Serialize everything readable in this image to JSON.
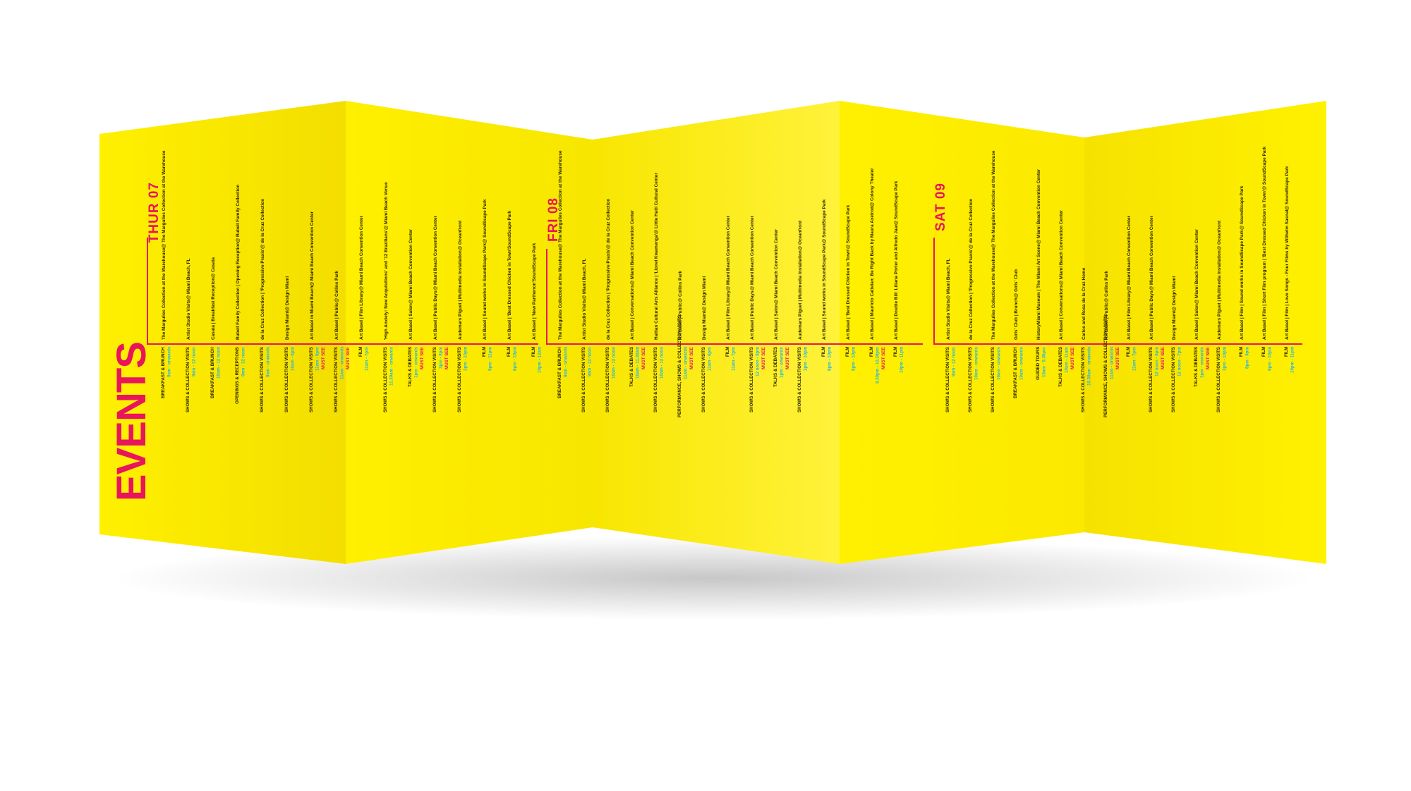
{
  "title": "EVENTS",
  "colors": {
    "paper": "#ffef00",
    "accent": "#e8145c",
    "time": "#27b8d8",
    "text": "#2b2200"
  },
  "days": [
    {
      "label": "THUR 07"
    },
    {
      "label": "FRI 08"
    },
    {
      "label": "SAT 09"
    }
  ],
  "thur_venues": [
    [
      "The Margulies Collection at the Warehouse",
      "@ The Margulies Collection at the Warehouse"
    ],
    [
      "Artist Studio Visits",
      "@ Miami Beach, FL"
    ],
    [
      "Casata | Breakfast Reception",
      "@ Casata"
    ],
    [
      "Rubell Family Collection | Opening Reception",
      "@ Rubell Family Collection"
    ],
    [
      "de la Cruz Collection | 'Progressive Praxis'",
      "@ de la Cruz Collection"
    ],
    [
      "Design Miami",
      "@ Design Miami"
    ],
    [
      "Art Basel in Miami Beach",
      "@ Miami Beach Convention Center"
    ],
    [
      "Art Basel | Public",
      "@ Collins Park"
    ],
    [
      "Art Basel | Film Library",
      "@ Miami Beach Convention Center"
    ],
    [
      "'High Anxiety: New Acquisitions' and '12 Brazilians'",
      "@ Miami Beach Venue"
    ],
    [
      "Art Basel | Salon",
      "@ Miami Beach Convention Center"
    ],
    [
      "Art Basel | Public Days",
      "@ Miami Beach Convention Center"
    ],
    [
      "Audemars Piguet | Multimedia Installation",
      "@ Oceanfront"
    ],
    [
      "Art Basel | Sound works in SoundScape Park",
      "@ SoundScape Park"
    ],
    [
      "Art Basel | 'Best Dressed Chicken in Town'",
      "SoundScape Park"
    ],
    [
      "Art Basel | 'New Parthenon'",
      "SoundScape Park"
    ]
  ],
  "thur_cats": [
    [
      "BREAKFAST & BRUNCH",
      "9am - onwards",
      ""
    ],
    [
      "SHOWS & COLLECTION VISITS",
      "9am - 12 noon",
      ""
    ],
    [
      "BREAKFAST & BRUNCH",
      "10am - 12 noon",
      ""
    ],
    [
      "OPENINGS & RECEPTIONS",
      "9am - 12 noon",
      ""
    ],
    [
      "SHOWS & COLLECTION VISITS",
      "9am - onwards",
      ""
    ],
    [
      "SHOWS & COLLECTION VISITS",
      "10am - 6pm",
      ""
    ],
    [
      "SHOWS & COLLECTION VISITS",
      "11am - 8pm",
      "MUST SEE"
    ],
    [
      "SHOWS & COLLECTION VISITS",
      "11am - onwards",
      "MUST SEE"
    ],
    [
      "FILM",
      "11am - 7pm",
      ""
    ],
    [
      "SHOWS & COLLECTION VISITS",
      "11.30am - onwards",
      ""
    ],
    [
      "TALKS & DEBATES",
      "1pm - onwards",
      "MUST SEE"
    ],
    [
      "SHOWS & COLLECTION VISITS",
      "3pm - 8pm",
      "MUST SEE"
    ],
    [
      "SHOWS & COLLECTION VISITS",
      "3pm - 10pm",
      ""
    ],
    [
      "FILM",
      "9pm - 11pm",
      ""
    ],
    [
      "FILM",
      "8pm - 10pm",
      ""
    ],
    [
      "FILM",
      "10pm - 12am",
      ""
    ]
  ],
  "fri_venues": [
    [
      "The Margulies Collection at the Warehouse",
      "@ The Margulies Collection at the Warehouse"
    ],
    [
      "Artist Studio Visits",
      "@ Miami Beach, FL"
    ],
    [
      "de la Cruz Collection | 'Progressive Praxis'",
      "@ de la Cruz Collection"
    ],
    [
      "Art Basel | Conversations",
      "@ Miami Beach Convention Center"
    ],
    [
      "Haitian Cultural Arts Alliance | 'Lionel Kwamenga'",
      "@ Little Haiti Cultural Center"
    ],
    [
      "Art Basel | Public",
      "@ Collins Park"
    ],
    [
      "Design Miami",
      "@ Design Miami"
    ],
    [
      "Art Basel | Film Library",
      "@ Miami Beach Convention Center"
    ],
    [
      "Art Basel | Public Days",
      "@ Miami Beach Convention Center"
    ],
    [
      "Art Basel | Salon",
      "@ Miami Beach Convention Center"
    ],
    [
      "Audemars Piguet | Multimedia Installation",
      "@ Oceanfront"
    ],
    [
      "Art Basel | Sound works in SoundScape Park",
      "@ SoundScape Park"
    ],
    [
      "Art Basel | 'Best Dressed Chicken in Town'",
      "@ SoundScape Park"
    ],
    [
      "Art Basel | Mauricio Cattelan: Be Right Back by Maura Axelrod",
      "@ Colony Theater"
    ],
    [
      "Art Basel | Double Bill: Liliana Porter and Alfredo Jaar",
      "@ SoundScape Park"
    ]
  ],
  "fri_cats": [
    [
      "BREAKFAST & BRUNCH",
      "9am - onwards",
      ""
    ],
    [
      "SHOWS & COLLECTION VISITS",
      "9am - 12 noon",
      ""
    ],
    [
      "SHOWS & COLLECTION VISITS",
      "10am - 12 noon",
      ""
    ],
    [
      "TALKS & DEBATES",
      "10am - 11.30am",
      "MUST SEE"
    ],
    [
      "SHOWS & COLLECTION VISITS",
      "10am - 12 noon",
      ""
    ],
    [
      "PERFORMANCE, SHOWS & COLLECTION VISITS",
      "11am - onwards",
      "MUST SEE"
    ],
    [
      "SHOWS & COLLECTION VISITS",
      "11am - 6pm",
      ""
    ],
    [
      "FILM",
      "11am - 7pm",
      ""
    ],
    [
      "SHOWS & COLLECTION VISITS",
      "12 noon - 8pm",
      "MUST SEE"
    ],
    [
      "TALKS & DEBATES",
      "1pm - onwards",
      "MUST SEE"
    ],
    [
      "SHOWS & COLLECTION VISITS",
      "3pm - 10pm",
      ""
    ],
    [
      "FILM",
      "8pm - 10pm",
      ""
    ],
    [
      "FILM",
      "8pm - 10pm",
      ""
    ],
    [
      "FILM",
      "8.30pm - 10.30pm",
      "MUST SEE"
    ],
    [
      "FILM",
      "10pm - 11pm",
      ""
    ]
  ],
  "sat_venues": [
    [
      "Artist Studio Visits",
      "@ Miami Beach, FL"
    ],
    [
      "de la Cruz Collection | 'Progressive Praxis'",
      "@ de la Cruz Collection"
    ],
    [
      "The Margulies Collection at the Warehouse",
      "@ The Margulies Collection at the Warehouse"
    ],
    [
      "Girls' Club | Brunch",
      "@ Girls' Club"
    ],
    [
      "HistoryMiami Museum | The Miami Art Scene",
      "@ Miami Beach Convention Center"
    ],
    [
      "Art Basel | Conversations",
      "@ Miami Beach Convention Center"
    ],
    [
      "Carlos and Rosa de la Cruz Home",
      ""
    ],
    [
      "Art Basel | Public",
      "@ Collins Park"
    ],
    [
      "Art Basel | Film Library",
      "@ Miami Beach Convention Center"
    ],
    [
      "Art Basel | Public Days",
      "@ Miami Beach Convention Center"
    ],
    [
      "Design Miami",
      "@ Design Miami"
    ],
    [
      "Art Basel | Salon",
      "@ Miami Beach Convention Center"
    ],
    [
      "Audemars Piguet | Multimedia Installation",
      "@ Oceanfront"
    ],
    [
      "Art Basel | Film | Sound works in SoundScape Park",
      "@ SoundScape Park"
    ],
    [
      "Art Basel | Film | Short Film program | 'Best Dressed Chicken in Town'",
      "@ SoundScape Park"
    ],
    [
      "Art Basel | Film | Love Songs - Four Films by Wilhelm Sasnal",
      "@ SoundScape Park"
    ]
  ],
  "sat_cats": [
    [
      "SHOWS & COLLECTION VISITS",
      "9am - 12 noon",
      ""
    ],
    [
      "SHOWS & COLLECTION VISITS",
      "10am - onwards",
      ""
    ],
    [
      "SHOWS & COLLECTION VISITS",
      "10am - onwards",
      ""
    ],
    [
      "BREAKFAST & BRUNCH",
      "10am - onwards",
      ""
    ],
    [
      "GUIDED TOURS",
      "10am - 5.30pm",
      ""
    ],
    [
      "TALKS & DEBATES",
      "10am - 11am",
      "MUST SEE"
    ],
    [
      "SHOWS & COLLECTION VISITS",
      "10.30am - onwards",
      ""
    ],
    [
      "PERFORMANCE, SHOWS & COLLECTION VISITS",
      "11am - onwards",
      "MUST SEE"
    ],
    [
      "FILM",
      "11am - 7pm",
      ""
    ],
    [
      "SHOWS & COLLECTION VISITS",
      "12 noon - 8pm",
      "MUST SEE"
    ],
    [
      "SHOWS & COLLECTION VISITS",
      "12 noon - 7pm",
      ""
    ],
    [
      "TALKS & DEBATES",
      "1pm - onwards",
      "MUST SEE"
    ],
    [
      "SHOWS & COLLECTION VISITS",
      "3pm - 10pm",
      ""
    ],
    [
      "FILM",
      "8pm - 9pm",
      ""
    ],
    [
      "FILM",
      "9pm - 10pm",
      ""
    ],
    [
      "FILM",
      "10pm - 11pm",
      ""
    ]
  ]
}
